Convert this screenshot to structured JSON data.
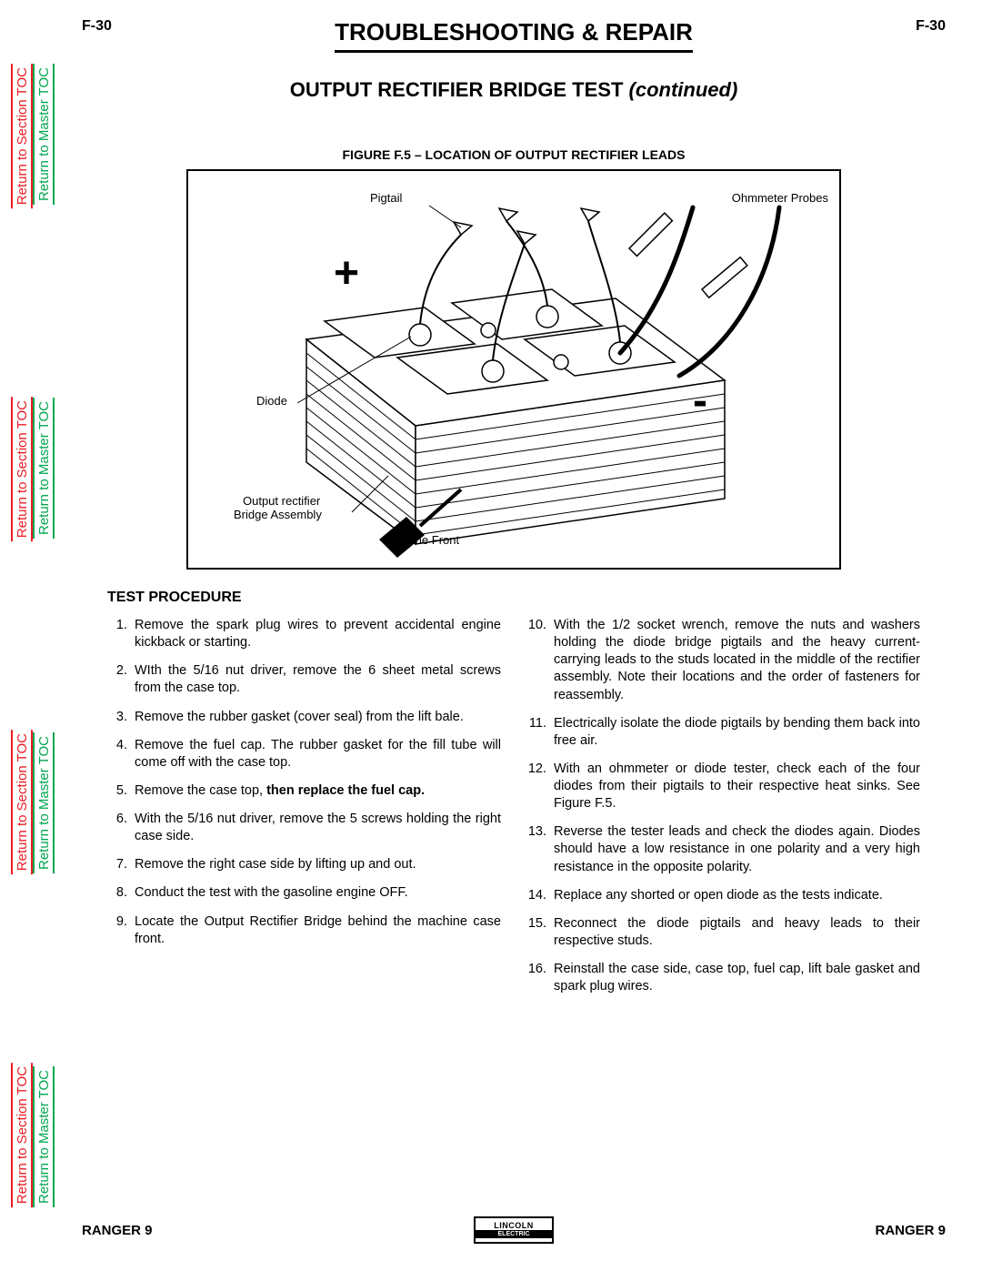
{
  "page_num": "F-30",
  "header_title": "TROUBLESHOOTING & REPAIR",
  "subtitle_main": "OUTPUT RECTIFIER BRIDGE TEST",
  "subtitle_suffix": "(continued)",
  "figure_caption": "FIGURE F.5 – LOCATION OF OUTPUT RECTIFIER LEADS",
  "figure_labels": {
    "pigtail": "Pigtail",
    "ohmmeter": "Ohmmeter Probes",
    "diode": "Diode",
    "assembly_l1": "Output rectifier",
    "assembly_l2": "Bridge Assembly",
    "machine_front": "Machine Front",
    "plus": "+",
    "minus": "-"
  },
  "section_heading": "TEST PROCEDURE",
  "steps_left": [
    {
      "n": "1.",
      "t": "Remove the spark plug wires to prevent accidental engine kickback or starting."
    },
    {
      "n": "2.",
      "t": "WIth the 5/16  nut driver, remove the 6 sheet metal screws from the case top."
    },
    {
      "n": "3.",
      "t": "Remove the rubber gasket (cover seal) from the lift bale."
    },
    {
      "n": "4.",
      "t": "Remove the fuel cap.  The rubber gasket for the fill tube will come off with the case top."
    },
    {
      "n": "5.",
      "t": "Remove the case top, ",
      "bold": "then replace the fuel cap."
    },
    {
      "n": "6.",
      "t": "With the 5/16  nut driver, remove the 5 screws holding the right case side."
    },
    {
      "n": "7.",
      "t": "Remove the right case side by lifting up and out."
    },
    {
      "n": "8.",
      "t": "Conduct the test with the gasoline engine OFF."
    },
    {
      "n": "9.",
      "t": "Locate the Output Rectifier Bridge behind the machine case front."
    }
  ],
  "steps_right": [
    {
      "n": "10.",
      "t": "With the 1/2  socket wrench, remove the nuts and washers holding the diode bridge pigtails and the heavy current-carrying leads to the studs located in the middle of the rectifier assembly.  Note their locations and the order of fasteners for reassembly."
    },
    {
      "n": "11.",
      "t": "Electrically isolate the diode pigtails by bending them back into  free air."
    },
    {
      "n": "12.",
      "t": "With an ohmmeter or diode tester, check each of the four diodes from their pigtails to their respective heat sinks.  See Figure F.5."
    },
    {
      "n": "13.",
      "t": "Reverse the tester leads and check the diodes again.  Diodes should have a low resistance in one polarity and a very high resistance in the opposite polarity."
    },
    {
      "n": "14.",
      "t": "Replace any  shorted  or  open  diode as the tests indicate."
    },
    {
      "n": "15.",
      "t": "Reconnect the diode pigtails and heavy leads to their respective studs."
    },
    {
      "n": "16.",
      "t": "Reinstall the case side, case top, fuel cap, lift bale gasket and spark plug wires."
    }
  ],
  "footer_model": "RANGER 9",
  "logo_top": "LINCOLN",
  "logo_bot": "ELECTRIC",
  "side_tabs": {
    "section": "Return to Section TOC",
    "master": "Return to Master TOC"
  },
  "colors": {
    "red": "#ed1c24",
    "green": "#00a651",
    "black": "#000000"
  }
}
